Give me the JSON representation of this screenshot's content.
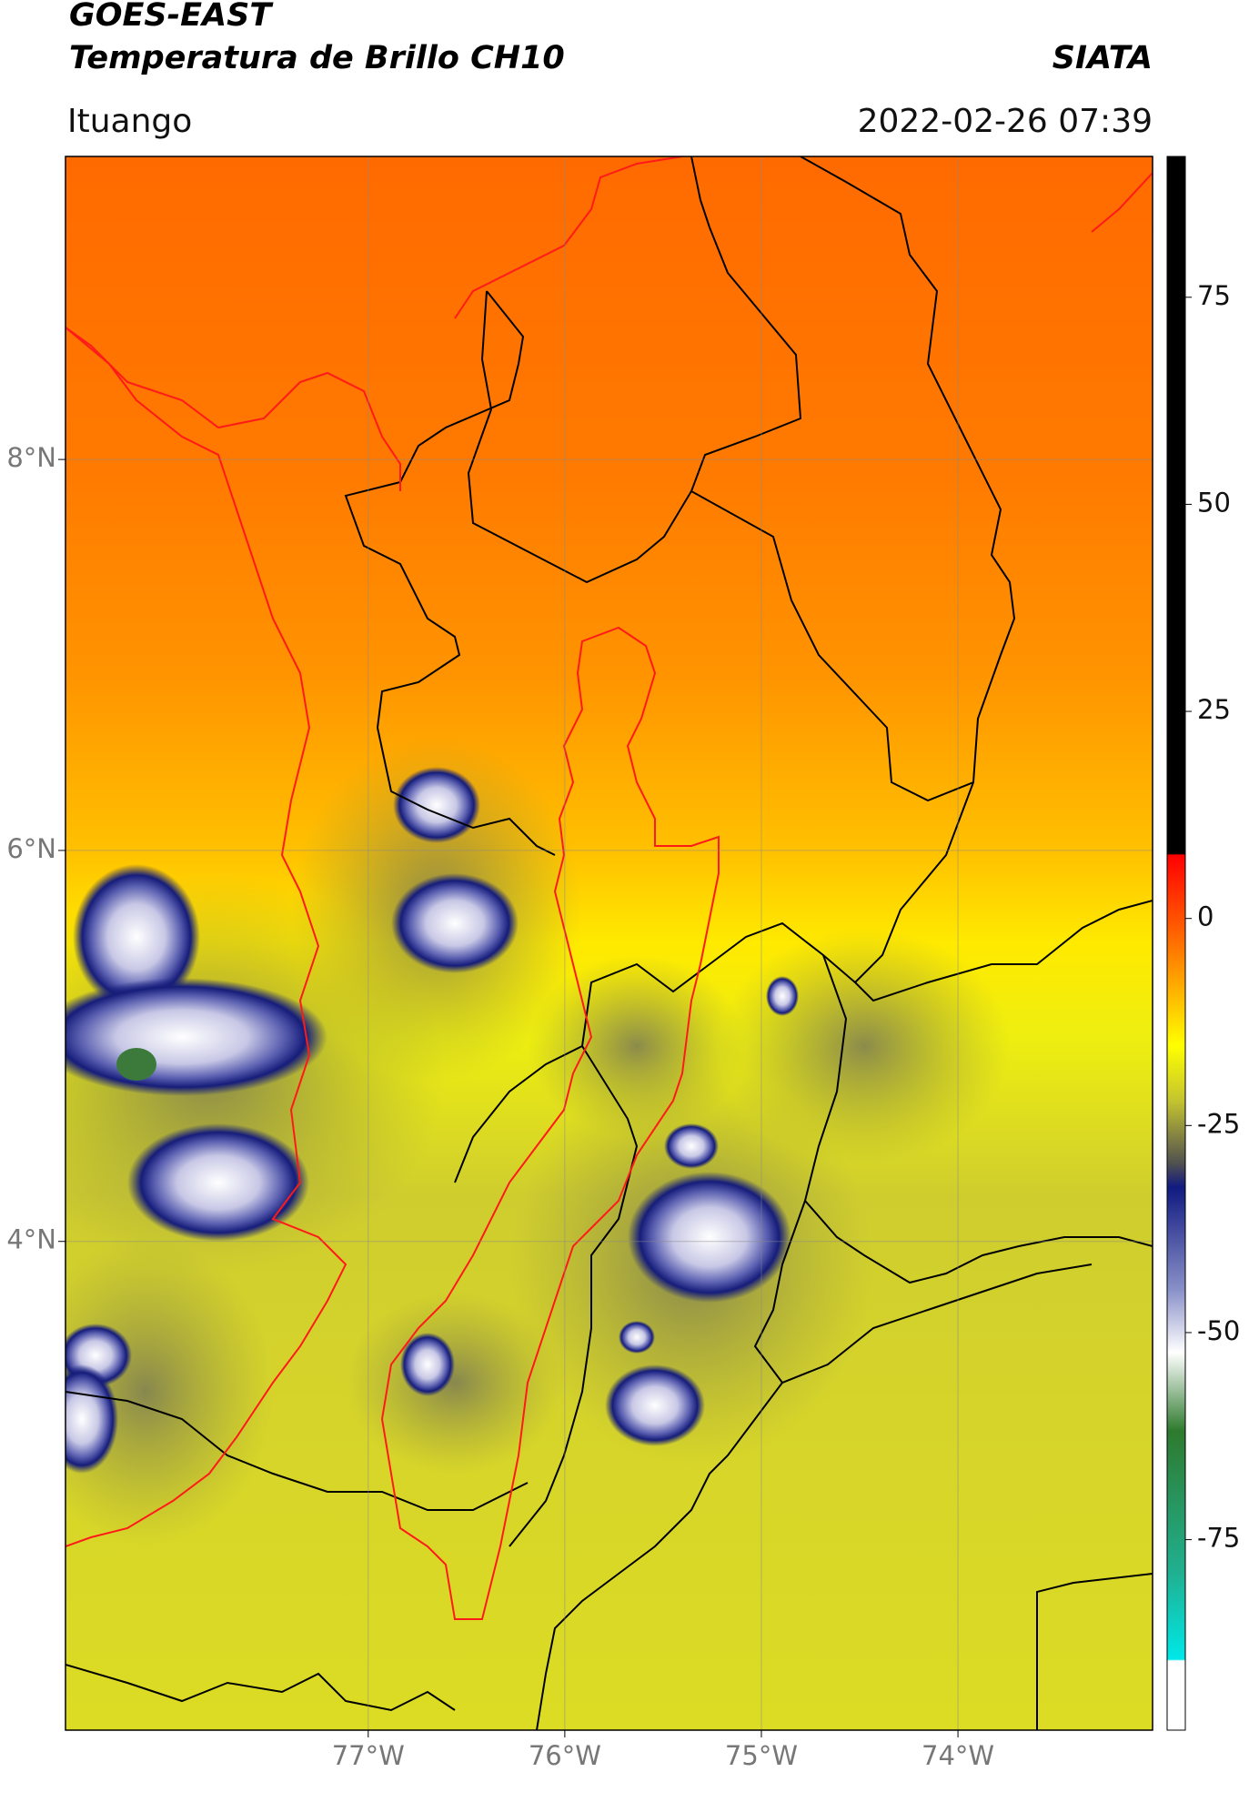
{
  "header": {
    "title": "GOES-EAST",
    "subtitle": "Temperatura de Brillo CH10",
    "brand": "SIATA",
    "location": "Ituango",
    "timestamp": "2022-02-26 07:39"
  },
  "chart_data": {
    "type": "map",
    "xlim": [
      -78.54,
      -73.01
    ],
    "ylim": [
      1.5,
      9.55
    ],
    "xticks": [
      {
        "value": -77,
        "label": "77°W"
      },
      {
        "value": -76,
        "label": "76°W"
      },
      {
        "value": -75,
        "label": "75°W"
      },
      {
        "value": -74,
        "label": "74°W"
      }
    ],
    "yticks": [
      {
        "value": 8,
        "label": "8°N"
      },
      {
        "value": 6,
        "label": "6°N"
      },
      {
        "value": 4,
        "label": "4°N"
      }
    ],
    "grid": true,
    "colorbar": {
      "ylim": [
        -98,
        92
      ],
      "yticks": [
        75,
        50,
        25,
        0,
        -25,
        -50,
        -75
      ]
    }
  }
}
